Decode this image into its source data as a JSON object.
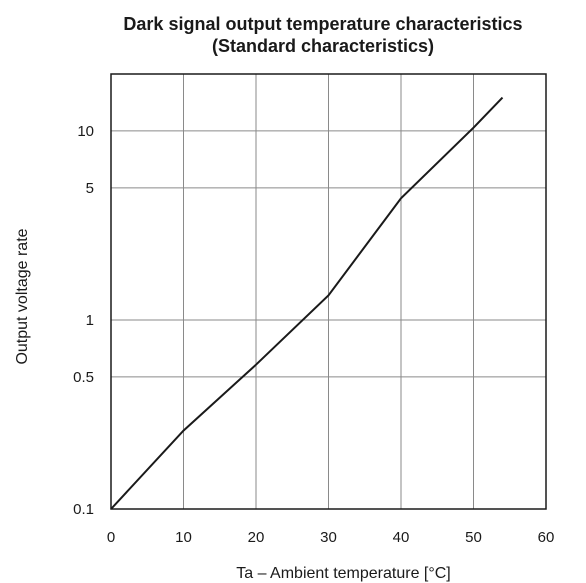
{
  "chart_data": {
    "type": "line",
    "title": "Dark signal output temperature characteristics",
    "subtitle": "(Standard characteristics)",
    "xlabel": "Ta – Ambient temperature [°C]",
    "ylabel": "Output voltage rate",
    "xlim": [
      0,
      60
    ],
    "ylim": [
      0.1,
      20
    ],
    "yscale": "log",
    "grid": true,
    "xticks": [
      0,
      10,
      20,
      30,
      40,
      50,
      60
    ],
    "xtick_labels": [
      "0",
      "10",
      "20",
      "30",
      "40",
      "50",
      "60"
    ],
    "yticks": [
      0.1,
      0.5,
      1,
      5,
      10
    ],
    "ytick_labels": [
      "0.1",
      "0.5",
      "1",
      "5",
      "10"
    ],
    "series": [
      {
        "x": [
          0,
          10,
          20,
          30,
          40,
          50,
          54
        ],
        "y": [
          0.1,
          0.26,
          0.58,
          1.35,
          4.4,
          10.4,
          15
        ],
        "color": "#1a1a1a"
      }
    ]
  }
}
